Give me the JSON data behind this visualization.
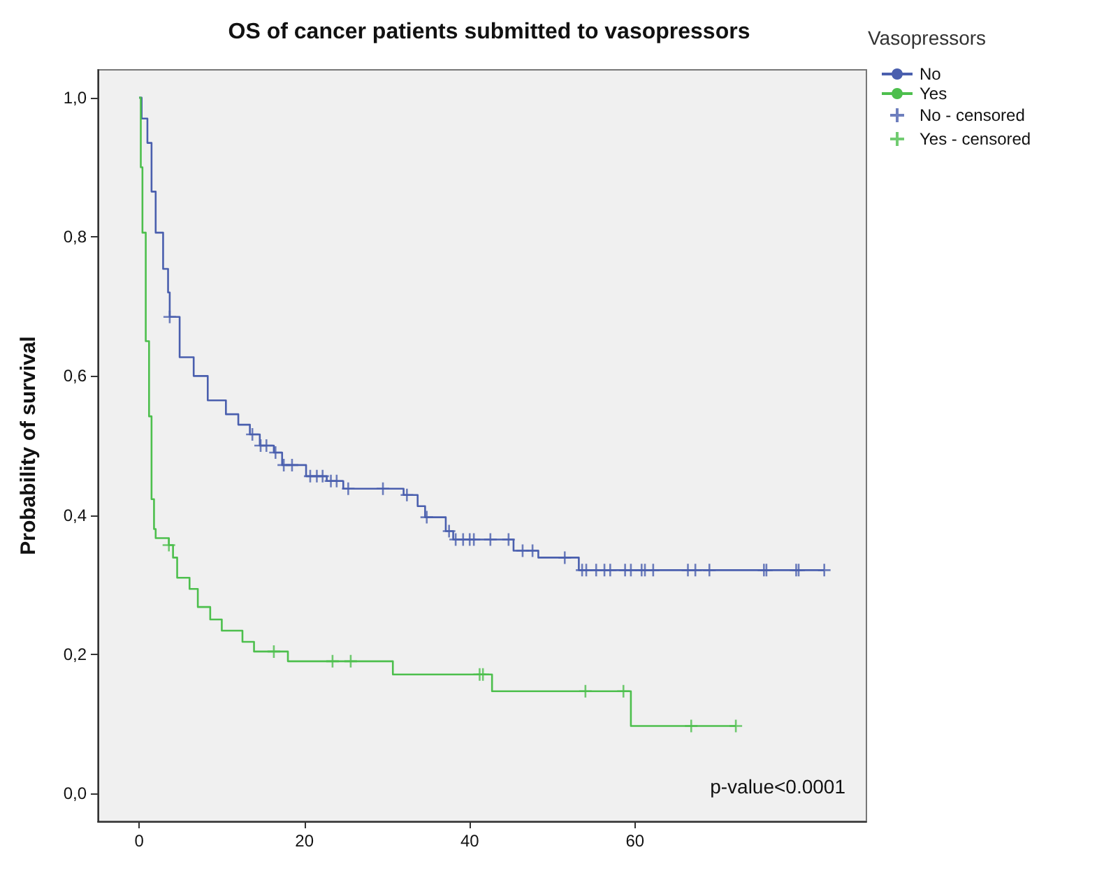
{
  "chart_data": {
    "type": "step",
    "title": "OS of cancer patients submitted to vasopressors",
    "ylabel": "Probability of survival",
    "legend_title": "Vasopressors",
    "legend": "top right",
    "grid": false,
    "xlim": [
      -5,
      88
    ],
    "xticks": [
      0,
      20,
      40,
      60
    ],
    "ylim": [
      -0.04,
      1.04
    ],
    "yticks": [
      {
        "value": 0,
        "label": "0,0"
      },
      {
        "value": 0.2,
        "label": "0,2"
      },
      {
        "value": 0.4,
        "label": "0,4"
      },
      {
        "value": 0.6,
        "label": "0,6"
      },
      {
        "value": 0.8,
        "label": "0,8"
      },
      {
        "value": 1,
        "label": "1,0"
      }
    ],
    "annotations": [
      "p-value<0.0001"
    ],
    "series": [
      {
        "name": "No",
        "marker": "none",
        "color": "#4a5fae",
        "x": [
          0,
          0.3,
          1.0,
          1.5,
          2.0,
          2.9,
          3.5,
          3.7,
          4.9,
          6.6,
          8.3,
          10.5,
          12.0,
          13.4,
          14.6,
          16.3,
          17.3,
          20.2,
          22.7,
          24.7,
          32,
          33.7,
          34.6,
          37.1,
          38.0,
          45.3,
          48.3,
          53.2,
          82.9
        ],
        "values": [
          1.0,
          0.97,
          0.935,
          0.865,
          0.806,
          0.754,
          0.72,
          0.685,
          0.627,
          0.6,
          0.565,
          0.545,
          0.53,
          0.516,
          0.5,
          0.49,
          0.472,
          0.456,
          0.449,
          0.438,
          0.429,
          0.413,
          0.397,
          0.377,
          0.365,
          0.349,
          0.339,
          0.321,
          0.321
        ]
      },
      {
        "name": "Yes",
        "marker": "none",
        "color": "#4dbf4d",
        "x": [
          0,
          0.2,
          0.4,
          0.8,
          1.2,
          1.5,
          1.8,
          2.0,
          3.6,
          4.1,
          4.6,
          6.1,
          7.1,
          8.6,
          10,
          12.5,
          13.9,
          18,
          30.7,
          42.7,
          59.5,
          72.2
        ],
        "values": [
          1.0,
          0.9,
          0.806,
          0.65,
          0.542,
          0.423,
          0.38,
          0.367,
          0.357,
          0.339,
          0.31,
          0.294,
          0.268,
          0.25,
          0.234,
          0.218,
          0.204,
          0.19,
          0.171,
          0.147,
          0.097,
          0.097
        ]
      },
      {
        "name": "No - censored",
        "type": "scatter",
        "marker": "cross",
        "color": "#4a5fae",
        "x": [
          3.7,
          13.7,
          14.7,
          15.4,
          16.5,
          17.5,
          18.5,
          20.7,
          21.5,
          22.2,
          23.2,
          23.9,
          25.3,
          29.5,
          32.4,
          34.8,
          37.5,
          38.3,
          39.2,
          40,
          40.5,
          42.5,
          44.7,
          46.4,
          47.6,
          51.5,
          53.6,
          54.1,
          55.3,
          56.3,
          57,
          58.8,
          59.5,
          60.8,
          61.2,
          62.2,
          66.4,
          67.3,
          69,
          75.6,
          75.9,
          79.5,
          79.8,
          82.9
        ],
        "values": [
          0.685,
          0.516,
          0.5,
          0.5,
          0.49,
          0.472,
          0.472,
          0.456,
          0.456,
          0.456,
          0.449,
          0.449,
          0.438,
          0.438,
          0.429,
          0.397,
          0.377,
          0.365,
          0.365,
          0.365,
          0.365,
          0.365,
          0.365,
          0.349,
          0.349,
          0.339,
          0.321,
          0.321,
          0.321,
          0.321,
          0.321,
          0.321,
          0.321,
          0.321,
          0.321,
          0.321,
          0.321,
          0.321,
          0.321,
          0.321,
          0.321,
          0.321,
          0.321,
          0.321
        ]
      },
      {
        "name": "Yes - censored",
        "type": "scatter",
        "marker": "cross",
        "color": "#4dbf4d",
        "x": [
          3.6,
          16.3,
          23.4,
          25.6,
          41.2,
          41.6,
          54,
          58.6,
          66.8,
          72.2
        ],
        "values": [
          0.357,
          0.204,
          0.19,
          0.19,
          0.171,
          0.171,
          0.147,
          0.147,
          0.097,
          0.097
        ]
      }
    ]
  }
}
